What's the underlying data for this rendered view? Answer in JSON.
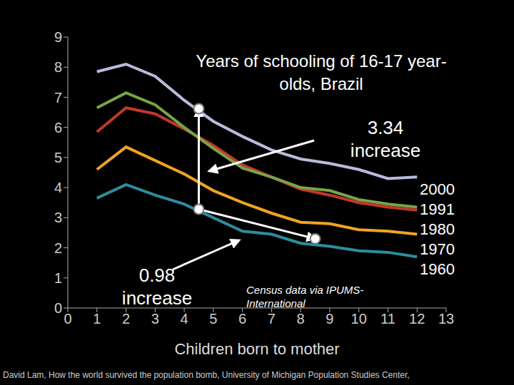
{
  "chart_data": {
    "type": "line",
    "title": "Years of schooling of 16-17 year-olds, Brazil",
    "x_label": "Children born to mother",
    "x": [
      1,
      2,
      3,
      4,
      5,
      6,
      7,
      8,
      9,
      10,
      11,
      12
    ],
    "series": [
      {
        "name": "2000",
        "color": "#b8bbdc",
        "values": [
          7.85,
          8.1,
          7.7,
          6.9,
          6.2,
          5.7,
          5.25,
          4.95,
          4.8,
          4.6,
          4.3,
          4.35
        ]
      },
      {
        "name": "1991",
        "color": "#7aa446",
        "values": [
          6.65,
          7.15,
          6.75,
          6.0,
          5.3,
          4.65,
          4.35,
          4.0,
          3.9,
          3.6,
          3.45,
          3.35
        ]
      },
      {
        "name": "1980",
        "color": "#c0392b",
        "values": [
          5.85,
          6.65,
          6.45,
          5.95,
          5.4,
          4.75,
          4.35,
          3.95,
          3.75,
          3.5,
          3.35,
          3.25
        ]
      },
      {
        "name": "1970",
        "color": "#f0a323",
        "values": [
          4.6,
          5.35,
          4.9,
          4.45,
          3.9,
          3.5,
          3.15,
          2.85,
          2.8,
          2.6,
          2.55,
          2.45
        ]
      },
      {
        "name": "1960",
        "color": "#2d8c9c",
        "values": [
          3.65,
          4.1,
          3.75,
          3.45,
          3.0,
          2.55,
          2.45,
          2.15,
          2.05,
          1.9,
          1.85,
          1.7
        ]
      }
    ],
    "xlim": [
      0,
      13
    ],
    "xticks": [
      0,
      1,
      2,
      3,
      4,
      5,
      6,
      7,
      8,
      9,
      10,
      11,
      12,
      13
    ],
    "ylim": [
      0,
      9
    ],
    "yticks": [
      0,
      1,
      2,
      3,
      4,
      5,
      6,
      7,
      8,
      9
    ],
    "grid": false,
    "legend": "right",
    "points": [
      {
        "x": 4.5,
        "y": 3.28
      },
      {
        "x": 4.5,
        "y": 6.62
      },
      {
        "x": 8.5,
        "y": 2.3
      }
    ],
    "annotations": [
      "3.34 increase",
      "0.98 increase",
      "Census data via IPUMS-International"
    ],
    "source": "David Lam, How the world survived the population bomb, University of Michigan Population Studies Center,"
  }
}
